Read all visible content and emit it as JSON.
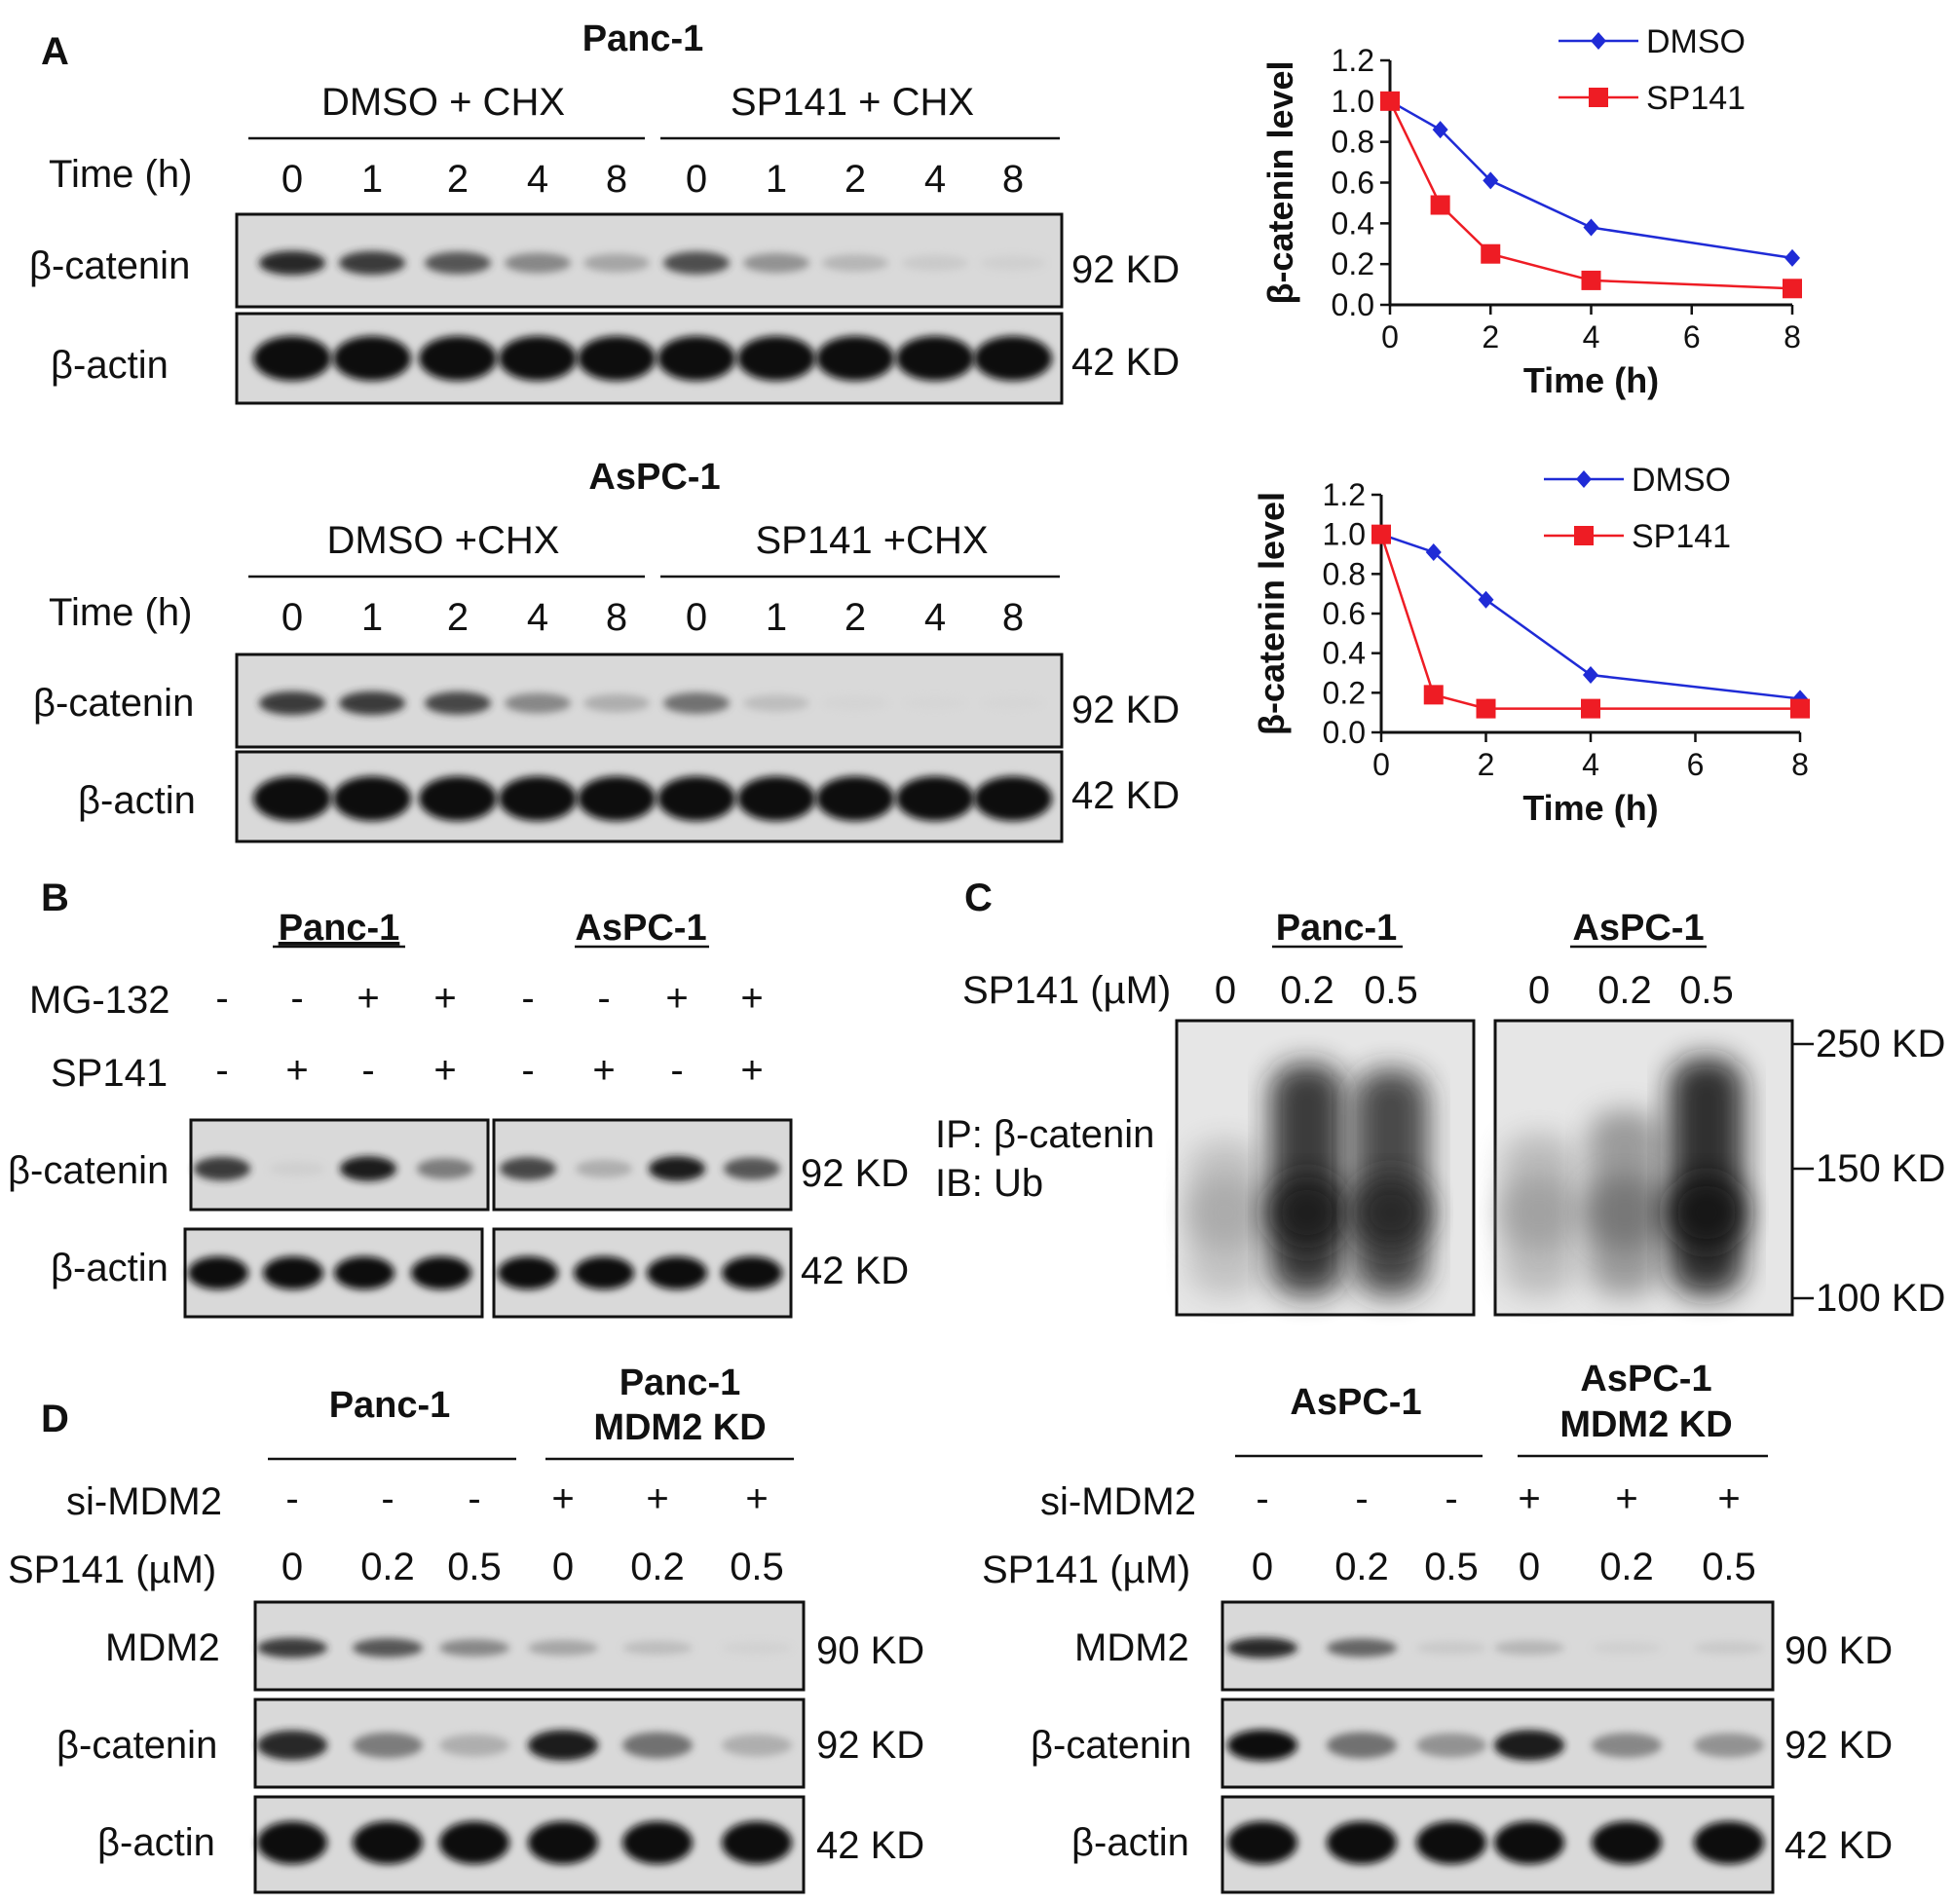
{
  "panels": {
    "A": "A",
    "B": "B",
    "C": "C",
    "D": "D"
  },
  "panel_a": {
    "blots": [
      {
        "cell_line": "Panc-1",
        "groups": [
          "DMSO  + CHX",
          "SP141 + CHX"
        ],
        "time_label": "Time  (h)",
        "lanes": [
          "0",
          "1",
          "2",
          "4",
          "8",
          "0",
          "1",
          "2",
          "4",
          "8"
        ],
        "rows": [
          {
            "protein": "β-catenin",
            "size": "92 KD",
            "intensity": [
              0.9,
              0.85,
              0.75,
              0.55,
              0.4,
              0.78,
              0.5,
              0.3,
              0.15,
              0.1
            ]
          },
          {
            "protein": "β-actin",
            "size": "42 KD",
            "intensity": [
              1,
              1,
              1,
              1,
              1,
              1,
              1,
              1,
              1,
              1
            ]
          }
        ]
      },
      {
        "cell_line": "AsPC-1",
        "groups": [
          "DMSO  +CHX",
          "SP141 +CHX"
        ],
        "time_label": "Time  (h)",
        "lanes": [
          "0",
          "1",
          "2",
          "4",
          "8",
          "0",
          "1",
          "2",
          "4",
          "8"
        ],
        "rows": [
          {
            "protein": "β-catenin",
            "size": "92 KD",
            "intensity": [
              0.85,
              0.85,
              0.8,
              0.55,
              0.35,
              0.65,
              0.25,
              0.05,
              0.03,
              0.03
            ]
          },
          {
            "protein": "β-actin",
            "size": "42 KD",
            "intensity": [
              1,
              1,
              1,
              1,
              1,
              1,
              1,
              1,
              1,
              1
            ]
          }
        ]
      }
    ]
  },
  "chart_data": [
    {
      "type": "line",
      "ylabel": "β-catenin level",
      "xlabel": "Time (h)",
      "ylim": [
        0,
        1.2
      ],
      "xlim": [
        0,
        8
      ],
      "yticks": [
        "0.0",
        "0.2",
        "0.4",
        "0.6",
        "0.8",
        "1.0",
        "1.2"
      ],
      "xticks": [
        "0",
        "2",
        "4",
        "6",
        "8"
      ],
      "legend": "top-right",
      "x": [
        0,
        1,
        2,
        4,
        8
      ],
      "series": [
        {
          "name": "DMSO",
          "color": "#1f2bd6",
          "marker": "diamond",
          "values": [
            1.0,
            0.86,
            0.61,
            0.38,
            0.23
          ]
        },
        {
          "name": "SP141",
          "color": "#ee1c24",
          "marker": "square",
          "values": [
            1.0,
            0.49,
            0.25,
            0.12,
            0.08
          ]
        }
      ]
    },
    {
      "type": "line",
      "ylabel": "β-catenin level",
      "xlabel": "Time (h)",
      "ylim": [
        0,
        1.2
      ],
      "xlim": [
        0,
        8
      ],
      "yticks": [
        "0.0",
        "0.2",
        "0.4",
        "0.6",
        "0.8",
        "1.0",
        "1.2"
      ],
      "xticks": [
        "0",
        "2",
        "4",
        "6",
        "8"
      ],
      "legend": "top-right",
      "x": [
        0,
        1,
        2,
        4,
        8
      ],
      "series": [
        {
          "name": "DMSO",
          "color": "#1f2bd6",
          "marker": "diamond",
          "values": [
            1.0,
            0.91,
            0.67,
            0.29,
            0.17
          ]
        },
        {
          "name": "SP141",
          "color": "#ee1c24",
          "marker": "square",
          "values": [
            1.0,
            0.19,
            0.12,
            0.12,
            0.12
          ]
        }
      ]
    }
  ],
  "panel_b": {
    "cell_lines": [
      "Panc-1",
      "AsPC-1"
    ],
    "treatments": [
      {
        "name": "MG-132",
        "values": [
          "-",
          "-",
          "+",
          "+",
          "-",
          "-",
          "+",
          "+"
        ]
      },
      {
        "name": "SP141",
        "values": [
          "-",
          "+",
          "-",
          "+",
          "-",
          "+",
          "-",
          "+"
        ]
      }
    ],
    "rows": [
      {
        "protein": "β-catenin",
        "size": "92 KD",
        "intensity": [
          0.85,
          0.1,
          0.95,
          0.6,
          0.8,
          0.35,
          0.95,
          0.75
        ]
      },
      {
        "protein": "β-actin",
        "size": "42 KD",
        "intensity": [
          1,
          1,
          1,
          1,
          1,
          1,
          1,
          1
        ]
      }
    ]
  },
  "panel_c": {
    "cell_lines": [
      "Panc-1",
      "AsPC-1"
    ],
    "dose_label": "SP141 (µM)",
    "doses": [
      "0",
      "0.2",
      "0.5",
      "0",
      "0.2",
      "0.5"
    ],
    "ip_label": "IP: β-catenin",
    "ib_label": "IB: Ub",
    "markers": [
      "250 KD",
      "150 KD",
      "100 KD"
    ],
    "smear_intensity": [
      0.25,
      0.9,
      0.85,
      0.3,
      0.5,
      0.95
    ]
  },
  "panel_d": [
    {
      "groups": [
        "Panc-1",
        "Panc-1",
        "MDM2  KD"
      ],
      "treatments": [
        {
          "name": "si-MDM2",
          "values": [
            "-",
            "-",
            "-",
            "+",
            "+",
            "+"
          ]
        },
        {
          "name": "SP141 (µM)",
          "values": [
            "0",
            "0.2",
            "0.5",
            "0",
            "0.2",
            "0.5"
          ]
        }
      ],
      "rows": [
        {
          "protein": "MDM2",
          "size": "90 KD",
          "intensity": [
            0.85,
            0.75,
            0.55,
            0.4,
            0.25,
            0.08
          ]
        },
        {
          "protein": "β-catenin",
          "size": "92 KD",
          "intensity": [
            0.9,
            0.6,
            0.35,
            0.95,
            0.65,
            0.35
          ]
        },
        {
          "protein": "β-actin",
          "size": "42 KD",
          "intensity": [
            1,
            1,
            1,
            1,
            1,
            1
          ]
        }
      ]
    },
    {
      "groups": [
        "AsPC-1",
        "AsPC-1",
        "MDM2  KD"
      ],
      "treatments": [
        {
          "name": "si-MDM2",
          "values": [
            "-",
            "-",
            "-",
            "+",
            "+",
            "+"
          ]
        },
        {
          "name": "SP141 (µM)",
          "values": [
            "0",
            "0.2",
            "0.5",
            "0",
            "0.2",
            "0.5"
          ]
        }
      ],
      "rows": [
        {
          "protein": "MDM2",
          "size": "90 KD",
          "intensity": [
            0.9,
            0.7,
            0.15,
            0.3,
            0.1,
            0.15
          ]
        },
        {
          "protein": "β-catenin",
          "size": "92 KD",
          "intensity": [
            1,
            0.65,
            0.5,
            0.95,
            0.55,
            0.5
          ]
        },
        {
          "protein": "β-actin",
          "size": "42 KD",
          "intensity": [
            1,
            1,
            1,
            1,
            1,
            1
          ]
        }
      ]
    }
  ]
}
